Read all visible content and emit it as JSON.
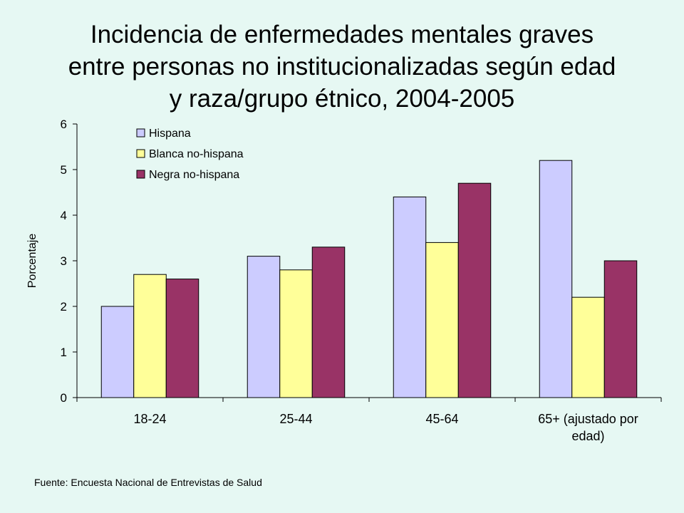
{
  "title_lines": [
    "Incidencia de enfermedades mentales graves",
    "entre personas no institucionalizadas según edad",
    "y raza/grupo étnico, 2004-2005"
  ],
  "source": "Fuente: Encuesta Nacional de Entrevistas de Salud",
  "chart_data": {
    "type": "bar",
    "title": "Incidencia de enfermedades mentales graves entre personas no institucionalizadas según edad y raza/grupo étnico, 2004-2005",
    "xlabel": "",
    "ylabel": "Porcentaje",
    "ylim": [
      0,
      6
    ],
    "yticks": [
      0,
      1,
      2,
      3,
      4,
      5,
      6
    ],
    "categories": [
      [
        "18-24"
      ],
      [
        "25-44"
      ],
      [
        "45-64"
      ],
      [
        "65+ (ajustado por",
        "edad)"
      ]
    ],
    "series": [
      {
        "name": "Hispana",
        "color": "#ccccff",
        "values": [
          2.0,
          3.1,
          4.4,
          5.2
        ]
      },
      {
        "name": "Blanca no-hispana",
        "color": "#ffff99",
        "values": [
          2.7,
          2.8,
          3.4,
          2.2
        ]
      },
      {
        "name": "Negra no-hispana",
        "color": "#993366",
        "values": [
          2.6,
          3.3,
          4.7,
          3.0
        ]
      }
    ],
    "legend_position": "top-left",
    "grid": false
  }
}
